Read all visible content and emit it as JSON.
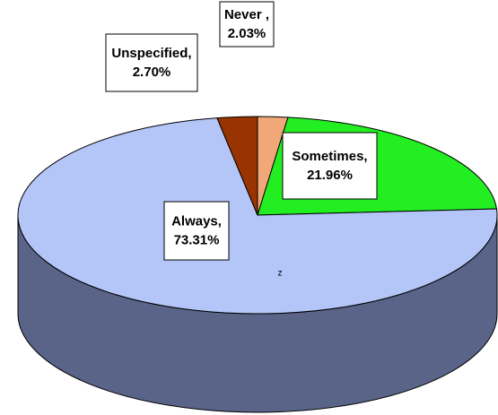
{
  "chart_data": {
    "type": "pie3d",
    "categories": [
      "Never ,",
      "Sometimes,",
      "Always,",
      "Unspecified,"
    ],
    "values": [
      2.03,
      21.96,
      73.31,
      2.7
    ],
    "value_labels": [
      "2.03%",
      "21.96%",
      "73.31%",
      "2.70%"
    ],
    "colors": [
      "#f0a878",
      "#22ee22",
      "#b4c6f8",
      "#993300"
    ],
    "side_color": "#5a6488",
    "annotation": "z"
  }
}
